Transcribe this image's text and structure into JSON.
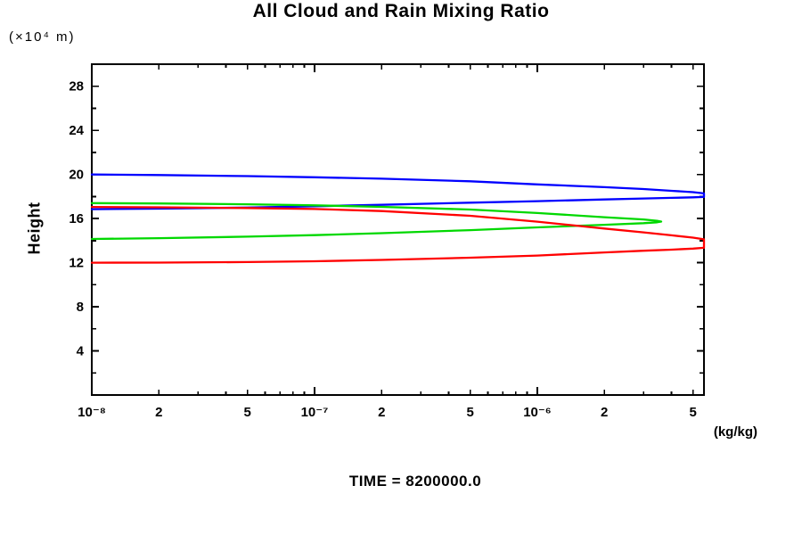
{
  "title": "All Cloud and Rain Mixing Ratio",
  "y_unit": "(×10⁴ m)",
  "ylabel": "Height",
  "x_unit": "(kg/kg)",
  "time_label": "TIME = 8200000.0",
  "colors": {
    "frame": "#000000",
    "blue_series": "#0000ff",
    "green_series": "#00d800",
    "red_series": "#ff0000",
    "background": "#ffffff"
  },
  "chart_data": {
    "type": "line",
    "title": "All Cloud and Rain Mixing Ratio",
    "xlabel": "(kg/kg)",
    "ylabel": "Height",
    "y_unit": "(×10⁴ m)",
    "annotation": "TIME = 8200000.0",
    "xscale": "log",
    "xlim": [
      1e-08,
      5.6e-06
    ],
    "ylim": [
      0,
      30
    ],
    "grid": false,
    "legend": null,
    "x_ticks": [
      {
        "v": 1e-08,
        "label": "10⁻⁸",
        "size": "major"
      },
      {
        "v": 2e-08,
        "label": "2",
        "size": "mid"
      },
      {
        "v": 3e-08,
        "size": "minor"
      },
      {
        "v": 4e-08,
        "size": "minor"
      },
      {
        "v": 5e-08,
        "label": "5",
        "size": "mid"
      },
      {
        "v": 6e-08,
        "size": "minor"
      },
      {
        "v": 7e-08,
        "size": "minor"
      },
      {
        "v": 8e-08,
        "size": "minor"
      },
      {
        "v": 9e-08,
        "size": "minor"
      },
      {
        "v": 1e-07,
        "label": "10⁻⁷",
        "size": "major"
      },
      {
        "v": 2e-07,
        "label": "2",
        "size": "mid"
      },
      {
        "v": 3e-07,
        "size": "minor"
      },
      {
        "v": 4e-07,
        "size": "minor"
      },
      {
        "v": 5e-07,
        "label": "5",
        "size": "mid"
      },
      {
        "v": 6e-07,
        "size": "minor"
      },
      {
        "v": 7e-07,
        "size": "minor"
      },
      {
        "v": 8e-07,
        "size": "minor"
      },
      {
        "v": 9e-07,
        "size": "minor"
      },
      {
        "v": 1e-06,
        "label": "10⁻⁶",
        "size": "major"
      },
      {
        "v": 2e-06,
        "label": "2",
        "size": "mid"
      },
      {
        "v": 3e-06,
        "size": "minor"
      },
      {
        "v": 4e-06,
        "size": "minor"
      },
      {
        "v": 5e-06,
        "label": "5",
        "size": "mid"
      }
    ],
    "y_ticks": [
      {
        "v": 2,
        "size": "minor"
      },
      {
        "v": 4,
        "label": "4",
        "size": "major"
      },
      {
        "v": 6,
        "size": "minor"
      },
      {
        "v": 8,
        "label": "8",
        "size": "major"
      },
      {
        "v": 10,
        "size": "minor"
      },
      {
        "v": 12,
        "label": "12",
        "size": "major"
      },
      {
        "v": 14,
        "size": "minor"
      },
      {
        "v": 16,
        "label": "16",
        "size": "major"
      },
      {
        "v": 18,
        "size": "minor"
      },
      {
        "v": 20,
        "label": "20",
        "size": "major"
      },
      {
        "v": 22,
        "size": "minor"
      },
      {
        "v": 24,
        "label": "24",
        "size": "major"
      },
      {
        "v": 26,
        "size": "minor"
      },
      {
        "v": 28,
        "label": "28",
        "size": "major"
      }
    ],
    "series": [
      {
        "name": "blue-curve",
        "color": "#0000ff",
        "points": [
          [
            1e-08,
            20.0
          ],
          [
            2e-08,
            19.95
          ],
          [
            5e-08,
            19.85
          ],
          [
            1e-07,
            19.75
          ],
          [
            2e-07,
            19.62
          ],
          [
            5e-07,
            19.38
          ],
          [
            1e-06,
            19.1
          ],
          [
            2e-06,
            18.85
          ],
          [
            3e-06,
            18.68
          ],
          [
            4e-06,
            18.52
          ],
          [
            5e-06,
            18.4
          ],
          [
            5.6e-06,
            18.28
          ],
          [
            5.6e-06,
            17.97
          ],
          [
            5e-06,
            17.93
          ],
          [
            4e-06,
            17.88
          ],
          [
            3e-06,
            17.82
          ],
          [
            2e-06,
            17.73
          ],
          [
            1e-06,
            17.58
          ],
          [
            5e-07,
            17.44
          ],
          [
            2e-07,
            17.25
          ],
          [
            1e-07,
            17.12
          ],
          [
            5e-08,
            17.0
          ],
          [
            2e-08,
            16.9
          ],
          [
            1e-08,
            16.85
          ]
        ]
      },
      {
        "name": "green-curve",
        "color": "#00d800",
        "points": [
          [
            1e-08,
            17.4
          ],
          [
            2e-08,
            17.37
          ],
          [
            5e-08,
            17.3
          ],
          [
            1e-07,
            17.2
          ],
          [
            2e-07,
            17.06
          ],
          [
            5e-07,
            16.82
          ],
          [
            1e-06,
            16.5
          ],
          [
            2e-06,
            16.12
          ],
          [
            3e-06,
            15.92
          ],
          [
            3.45e-06,
            15.8
          ],
          [
            3.6e-06,
            15.73
          ],
          [
            3.45e-06,
            15.66
          ],
          [
            3e-06,
            15.58
          ],
          [
            2e-06,
            15.44
          ],
          [
            1e-06,
            15.2
          ],
          [
            5e-07,
            14.95
          ],
          [
            2e-07,
            14.68
          ],
          [
            1e-07,
            14.5
          ],
          [
            5e-08,
            14.36
          ],
          [
            2e-08,
            14.22
          ],
          [
            1e-08,
            14.15
          ]
        ]
      },
      {
        "name": "red-curve",
        "color": "#ff0000",
        "points": [
          [
            1e-08,
            17.05
          ],
          [
            2e-08,
            17.02
          ],
          [
            5e-08,
            16.96
          ],
          [
            1e-07,
            16.87
          ],
          [
            2e-07,
            16.68
          ],
          [
            5e-07,
            16.25
          ],
          [
            1e-06,
            15.72
          ],
          [
            2e-06,
            15.1
          ],
          [
            3e-06,
            14.75
          ],
          [
            4e-06,
            14.48
          ],
          [
            5e-06,
            14.27
          ],
          [
            5.6e-06,
            14.12
          ],
          [
            5.6e-06,
            13.35
          ],
          [
            5e-06,
            13.28
          ],
          [
            4e-06,
            13.18
          ],
          [
            3e-06,
            13.08
          ],
          [
            2e-06,
            12.93
          ],
          [
            1e-06,
            12.65
          ],
          [
            5e-07,
            12.45
          ],
          [
            2e-07,
            12.25
          ],
          [
            1e-07,
            12.13
          ],
          [
            5e-08,
            12.06
          ],
          [
            2e-08,
            12.01
          ],
          [
            1e-08,
            12.0
          ]
        ]
      }
    ]
  }
}
